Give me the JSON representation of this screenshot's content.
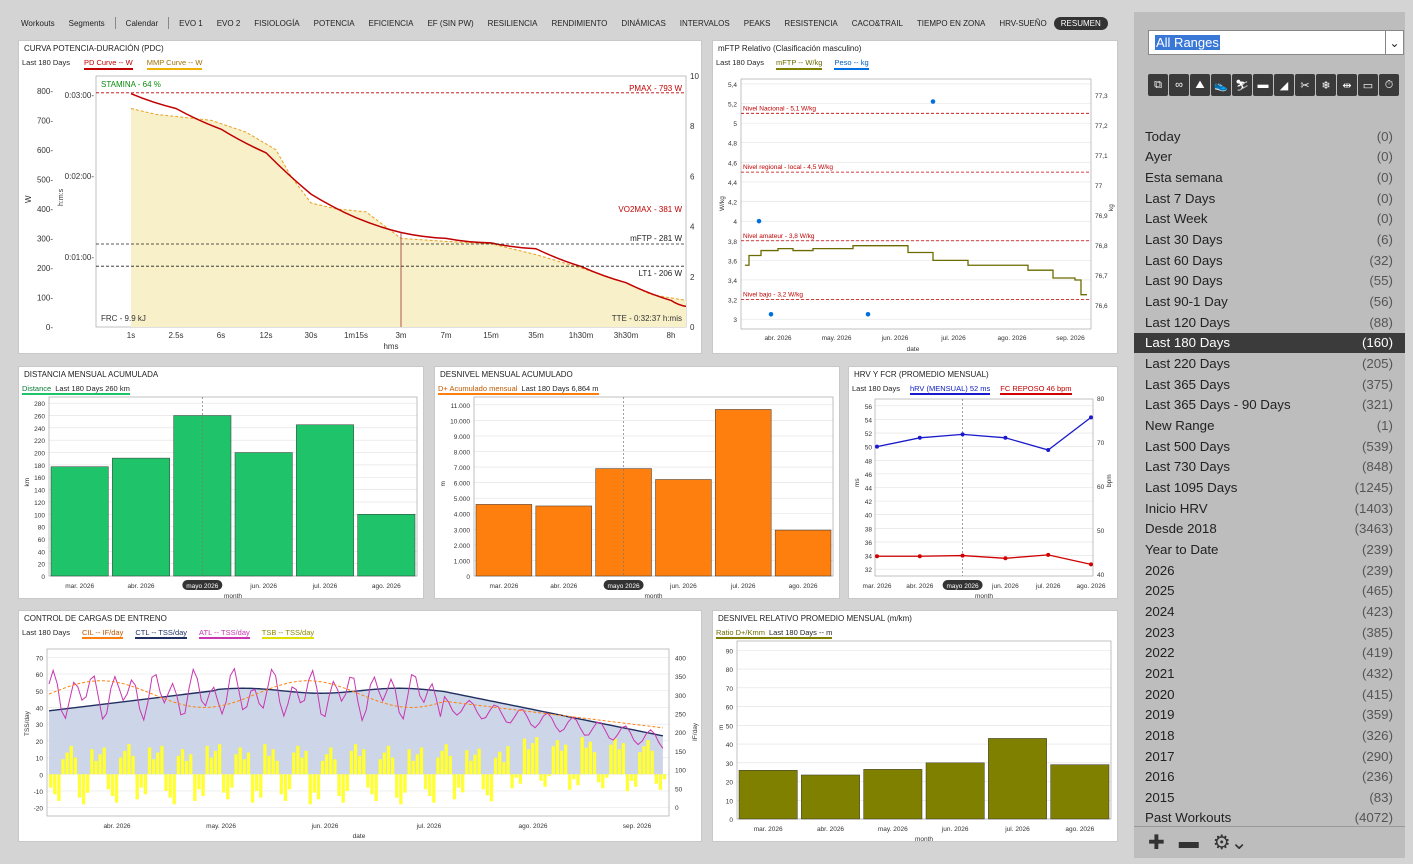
{
  "tabs": [
    {
      "label": "Workouts"
    },
    {
      "label": "Segments"
    },
    {
      "label": "Calendar"
    },
    {
      "label": "EVO 1"
    },
    {
      "label": "EVO 2"
    },
    {
      "label": "FISIOLOGÍA"
    },
    {
      "label": "POTENCIA"
    },
    {
      "label": "EFICIENCIA"
    },
    {
      "label": "EF (SIN PW)"
    },
    {
      "label": "RESILIENCIA"
    },
    {
      "label": "RENDIMIENTO"
    },
    {
      "label": "DINÁMICAS"
    },
    {
      "label": "INTERVALOS"
    },
    {
      "label": "PEAKS"
    },
    {
      "label": "RESISTENCIA"
    },
    {
      "label": "CACO&TRAIL"
    },
    {
      "label": "TIEMPO EN ZONA"
    },
    {
      "label": "HRV-SUEÑO"
    },
    {
      "label": "RESUMEN"
    }
  ],
  "active_tab": "RESUMEN",
  "colors": {
    "green": "#1fc46a",
    "orange": "#ff7f0e",
    "olive": "#808000",
    "red": "#c00000",
    "navy": "#1f2f5f",
    "magenta": "#c837b0",
    "yellow": "#ffff33",
    "blue": "#0070e0",
    "cream": "#f8f0c8"
  },
  "pdc": {
    "title": "CURVA POTENCIA-DURACIÓN (PDC)",
    "legend": [
      "Last 180 Days",
      "PD Curve  -- W",
      "MMP Curve  -- W"
    ],
    "stamina": "STAMINA - 64 %",
    "pmax": "PMAX - 793 W",
    "vo2max": "VO2MAX - 381 W",
    "mftp": "mFTP - 281 W",
    "lt1": "LT1 - 206 W",
    "frc": "FRC - 9.9 kJ",
    "tte": "TTE - 0:32:37 h:mis",
    "ylabel": "W",
    "ylabel2": "h:m:s",
    "xlabel": "hms",
    "y_ticks": [
      "800-",
      "700-",
      "600-",
      "500-",
      "400-",
      "300-",
      "200-",
      "100-",
      "0-"
    ],
    "time_ticks": [
      "0:03:00-",
      "0:02:00-",
      "0:01:00-"
    ],
    "r_ticks": [
      "10",
      "8",
      "6",
      "4",
      "2",
      "0"
    ],
    "x_ticks": [
      "1s",
      "2.5s",
      "6s",
      "12s",
      "30s",
      "1m15s",
      "3m",
      "7m",
      "15m",
      "35m",
      "1h30m",
      "3h30m",
      "8h"
    ]
  },
  "mftp": {
    "title": "mFTP Relativo (Clasificación masculino)",
    "legend": [
      "Last 180 Days",
      "mFTP  -- W/kg",
      "Peso  -- kg"
    ],
    "levels": [
      "Nivel Nacional - 5,1 W/kg",
      "Nivel regional - local - 4,5 W/kg",
      "Nivel amateur - 3,8 W/kg",
      "Nivel bajo - 3,2 W/kg"
    ],
    "y_ticks": [
      "5,4",
      "5,2",
      "5",
      "4,8",
      "4,6",
      "4,4",
      "4,2",
      "4",
      "3,8",
      "3,6",
      "3,4",
      "3,2",
      "3"
    ],
    "r_ticks": [
      "77,3",
      "77,2",
      "77,1",
      "77",
      "76,9",
      "76,8",
      "76,7",
      "76,6"
    ],
    "x_ticks": [
      "abr. 2026",
      "may. 2026",
      "jun. 2026",
      "jul. 2026",
      "ago. 2026",
      "sep. 2026"
    ],
    "xlabel": "date",
    "ylabel": "W/kg",
    "ylabel2": "kg"
  },
  "dist": {
    "title": "DISTANCIA MENSUAL ACUMULADA",
    "legend": [
      "Distance",
      "Last 180 Days  260 km"
    ],
    "ylabel": "km",
    "xlabel": "month",
    "y_ticks": [
      "280",
      "260",
      "240",
      "220",
      "200",
      "180",
      "160",
      "140",
      "120",
      "100",
      "80",
      "60",
      "40",
      "20",
      "0"
    ],
    "categories": [
      "mar. 2026",
      "abr. 2026",
      "mayo 2026",
      "jun. 2026",
      "jul. 2026",
      "ago. 2026"
    ]
  },
  "desn": {
    "title": "DESNIVEL MENSUAL ACUMULADO",
    "legend": [
      "D+ Acumulado mensual",
      "Last 180 Days  6,864 m"
    ],
    "ylabel": "m",
    "xlabel": "month",
    "y_ticks": [
      "11.000",
      "10.000",
      "9.000",
      "8.000",
      "7.000",
      "6.000",
      "5.000",
      "4.000",
      "3.000",
      "2.000",
      "1.000",
      "0"
    ],
    "categories": [
      "mar. 2026",
      "abr. 2026",
      "mayo 2026",
      "jun. 2026",
      "jul. 2026",
      "ago. 2026"
    ]
  },
  "hrv": {
    "title": "HRV Y FCR (PROMEDIO MENSUAL)",
    "legend": [
      "Last 180 Days",
      "hRV (MENSUAL)  52 ms",
      "FC REPOSO  46 bpm"
    ],
    "ylabel": "ms",
    "ylabel2": "bpm",
    "xlabel": "month",
    "y_ticks": [
      "56",
      "54",
      "52",
      "50",
      "48",
      "46",
      "44",
      "42",
      "40",
      "38",
      "36",
      "34",
      "32"
    ],
    "r_ticks": [
      "80",
      "70",
      "60",
      "50",
      "40"
    ],
    "categories": [
      "mar. 2026",
      "abr. 2026",
      "mayo 2026",
      "jun. 2026",
      "jul. 2026",
      "ago. 2026"
    ]
  },
  "cargas": {
    "title": "CONTROL DE CARGAS DE ENTRENO",
    "legend": [
      "Last 180 Days",
      "CIL  -- IF/day",
      "CTL  -- TSS/day",
      "ATL  -- TSS/day",
      "TSB  -- TSS/day"
    ],
    "ylabel": "TSS/day",
    "ylabel2": "IF/day",
    "xlabel": "date",
    "y_ticks": [
      "70",
      "60",
      "50",
      "40",
      "30",
      "20",
      "10",
      "0",
      "-10",
      "-20"
    ],
    "r_ticks": [
      "400",
      "350",
      "300",
      "250",
      "200",
      "150",
      "100",
      "50",
      "0"
    ],
    "x_ticks": [
      "abr. 2026",
      "may. 2026",
      "jun. 2026",
      "jul. 2026",
      "ago. 2026",
      "sep. 2026"
    ]
  },
  "rel": {
    "title": "DESNIVEL RELATIVO PROMEDIO MENSUAL (m/km)",
    "legend": [
      "Ratio D+/Kmm",
      "Last 180 Days  -- m"
    ],
    "ylabel": "m",
    "xlabel": "month",
    "y_ticks": [
      "90",
      "80",
      "70",
      "60",
      "50",
      "40",
      "30",
      "20",
      "10",
      "0"
    ],
    "categories": [
      "mar. 2026",
      "abr. 2026",
      "may. 2026",
      "jun. 2026",
      "jul. 2026",
      "ago. 2026"
    ]
  },
  "chart_data": [
    {
      "type": "line",
      "title": "CURVA POTENCIA-DURACIÓN (PDC)",
      "xlabel": "hms",
      "ylabel": "W",
      "ylim": [
        0,
        850
      ],
      "x": [
        "1s",
        "2.5s",
        "6s",
        "12s",
        "30s",
        "1m15s",
        "3m",
        "7m",
        "15m",
        "35m",
        "1h30m",
        "3h30m",
        "8h"
      ],
      "series": [
        {
          "name": "PD Curve",
          "values": [
            790,
            720,
            640,
            560,
            420,
            350,
            300,
            285,
            275,
            250,
            200,
            150,
            70
          ]
        },
        {
          "name": "MMP Curve",
          "values": [
            740,
            700,
            680,
            600,
            420,
            390,
            300,
            288,
            275,
            240,
            null,
            null,
            100
          ]
        }
      ]
    },
    {
      "type": "line",
      "title": "mFTP Relativo (Clasificación masculino)",
      "ylabel": "W/kg",
      "ylim": [
        2.9,
        5.45
      ],
      "x": [
        "abr. 2026",
        "may. 2026",
        "jun. 2026",
        "jul. 2026",
        "ago. 2026",
        "sep. 2026"
      ],
      "series": [
        {
          "name": "mFTP",
          "values": [
            3.7,
            3.72,
            3.75,
            3.6,
            3.5,
            3.4
          ]
        }
      ]
    },
    {
      "type": "bar",
      "title": "DISTANCIA MENSUAL ACUMULADA",
      "ylabel": "km",
      "ylim": [
        0,
        290
      ],
      "categories": [
        "mar. 2026",
        "abr. 2026",
        "mayo 2026",
        "jun. 2026",
        "jul. 2026",
        "ago. 2026"
      ],
      "values": [
        177,
        191,
        260,
        200,
        245,
        100
      ]
    },
    {
      "type": "bar",
      "title": "DESNIVEL MENSUAL ACUMULADO",
      "ylabel": "m",
      "ylim": [
        0,
        11500
      ],
      "categories": [
        "mar. 2026",
        "abr. 2026",
        "mayo 2026",
        "jun. 2026",
        "jul. 2026",
        "ago. 2026"
      ],
      "values": [
        4600,
        4500,
        6900,
        6200,
        10700,
        2950
      ]
    },
    {
      "type": "line",
      "title": "HRV Y FCR (PROMEDIO MENSUAL)",
      "ylabel": "ms",
      "ylim": [
        31,
        57
      ],
      "x": [
        "mar. 2026",
        "abr. 2026",
        "mayo 2026",
        "jun. 2026",
        "jul. 2026",
        "ago. 2026"
      ],
      "series": [
        {
          "name": "hRV (MENSUAL)",
          "values": [
            50,
            51.3,
            51.8,
            51.3,
            49.5,
            54.3
          ]
        },
        {
          "name": "FC REPOSO",
          "values": [
            47.5,
            47.6,
            47.7,
            47.4,
            47.8,
            46.2
          ]
        }
      ]
    },
    {
      "type": "bar",
      "title": "DESNIVEL RELATIVO PROMEDIO MENSUAL (m/km)",
      "ylabel": "m",
      "ylim": [
        0,
        95
      ],
      "categories": [
        "mar. 2026",
        "abr. 2026",
        "may. 2026",
        "jun. 2026",
        "jul. 2026",
        "ago. 2026"
      ],
      "values": [
        26,
        23.5,
        26.5,
        30,
        43,
        29
      ]
    }
  ],
  "right": {
    "range_value": "All Ranges",
    "tools": [
      "copy-icon",
      "link-icon",
      "hiking-icon",
      "shoe-icon",
      "ski-icon",
      "sneaker-icon",
      "running-shoe-icon",
      "tools-icon",
      "snowflake-icon",
      "dumbbell-icon",
      "rower-icon",
      "stopwatch-icon"
    ],
    "ranges": [
      {
        "label": "Today",
        "count": "(0)"
      },
      {
        "label": "Ayer",
        "count": "(0)"
      },
      {
        "label": "Esta semana",
        "count": "(0)"
      },
      {
        "label": "Last 7 Days",
        "count": "(0)"
      },
      {
        "label": "Last Week",
        "count": "(0)"
      },
      {
        "label": "Last 30 Days",
        "count": "(6)"
      },
      {
        "label": "Last 60 Days",
        "count": "(32)"
      },
      {
        "label": "Last 90 Days",
        "count": "(55)"
      },
      {
        "label": "Last 90-1 Day",
        "count": "(56)"
      },
      {
        "label": "Last 120 Days",
        "count": "(88)"
      },
      {
        "label": "Last 180 Days",
        "count": "(160)"
      },
      {
        "label": "Last 220 Days",
        "count": "(205)"
      },
      {
        "label": "Last 365 Days",
        "count": "(375)"
      },
      {
        "label": "Last 365 Days - 90 Days",
        "count": "(321)"
      },
      {
        "label": "New Range",
        "count": "(1)"
      },
      {
        "label": "Last 500 Days",
        "count": "(539)"
      },
      {
        "label": "Last 730 Days",
        "count": "(848)"
      },
      {
        "label": "Last 1095 Days",
        "count": "(1245)"
      },
      {
        "label": "Inicio HRV",
        "count": "(1403)"
      },
      {
        "label": "Desde 2018",
        "count": "(3463)"
      },
      {
        "label": "Year to Date",
        "count": "(239)"
      },
      {
        "label": "2026",
        "count": "(239)"
      },
      {
        "label": "2025",
        "count": "(465)"
      },
      {
        "label": "2024",
        "count": "(423)"
      },
      {
        "label": "2023",
        "count": "(385)"
      },
      {
        "label": "2022",
        "count": "(419)"
      },
      {
        "label": "2021",
        "count": "(432)"
      },
      {
        "label": "2020",
        "count": "(415)"
      },
      {
        "label": "2019",
        "count": "(359)"
      },
      {
        "label": "2018",
        "count": "(326)"
      },
      {
        "label": "2017",
        "count": "(290)"
      },
      {
        "label": "2016",
        "count": "(236)"
      },
      {
        "label": "2015",
        "count": "(83)"
      },
      {
        "label": "Past Workouts",
        "count": "(4072)"
      }
    ],
    "selected": "Last 180 Days",
    "bottom": [
      "plus-icon",
      "minus-icon",
      "gear-icon"
    ]
  }
}
